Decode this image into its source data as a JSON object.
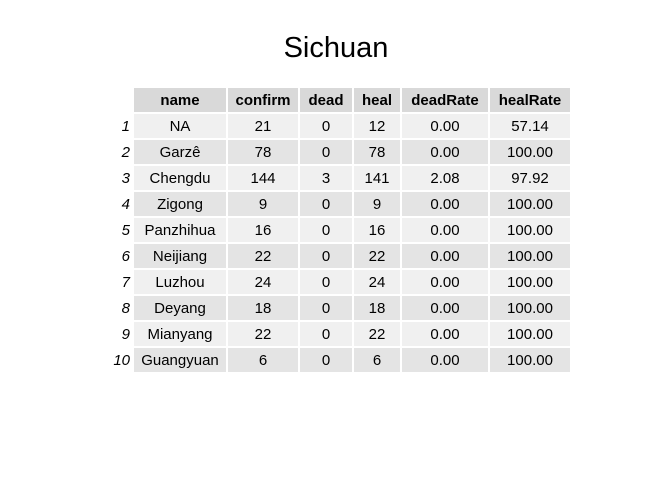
{
  "title": "Sichuan",
  "chart_data": {
    "type": "table",
    "title": "Sichuan",
    "columns": [
      "name",
      "confirm",
      "dead",
      "heal",
      "deadRate",
      "healRate"
    ],
    "row_labels": [
      "1",
      "2",
      "3",
      "4",
      "5",
      "6",
      "7",
      "8",
      "9",
      "10"
    ],
    "rows": [
      [
        "NA",
        "21",
        "0",
        "12",
        "0.00",
        "57.14"
      ],
      [
        "Garzê",
        "78",
        "0",
        "78",
        "0.00",
        "100.00"
      ],
      [
        "Chengdu",
        "144",
        "3",
        "141",
        "2.08",
        "97.92"
      ],
      [
        "Zigong",
        "9",
        "0",
        "9",
        "0.00",
        "100.00"
      ],
      [
        "Panzhihua",
        "16",
        "0",
        "16",
        "0.00",
        "100.00"
      ],
      [
        "Neijiang",
        "22",
        "0",
        "22",
        "0.00",
        "100.00"
      ],
      [
        "Luzhou",
        "24",
        "0",
        "24",
        "0.00",
        "100.00"
      ],
      [
        "Deyang",
        "18",
        "0",
        "18",
        "0.00",
        "100.00"
      ],
      [
        "Mianyang",
        "22",
        "0",
        "22",
        "0.00",
        "100.00"
      ],
      [
        "Guangyuan",
        "6",
        "0",
        "6",
        "0.00",
        "100.00"
      ]
    ]
  }
}
